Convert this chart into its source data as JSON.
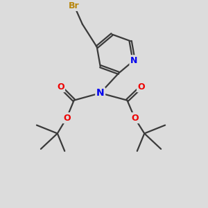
{
  "background_color": "#dcdcdc",
  "atom_colors": {
    "Br": "#b8860b",
    "N": "#0000ee",
    "O": "#ee0000",
    "C": "#3a3a3a"
  },
  "bond_color": "#3a3a3a",
  "bond_width": 1.6,
  "figsize": [
    3.0,
    3.0
  ],
  "dpi": 100,
  "xlim": [
    0,
    10
  ],
  "ylim": [
    0,
    10
  ]
}
